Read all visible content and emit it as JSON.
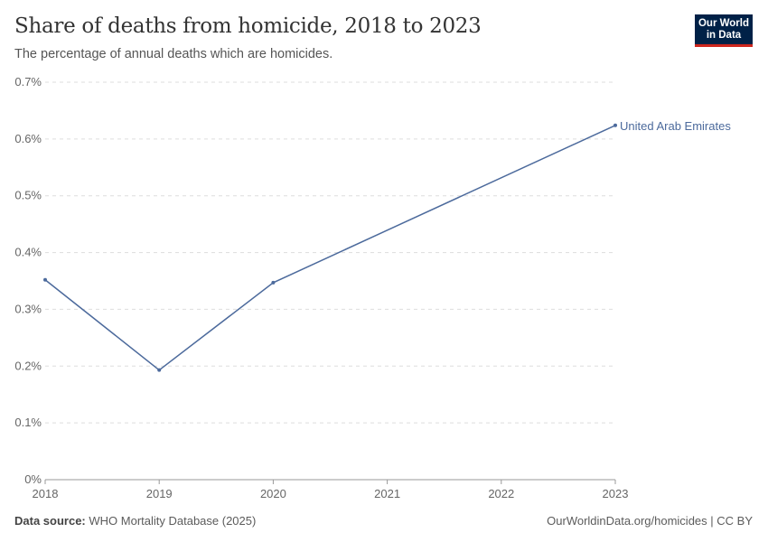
{
  "header": {
    "title": "Share of deaths from homicide, 2018 to 2023",
    "subtitle": "The percentage of annual deaths which are homicides.",
    "logo": "Our World in Data"
  },
  "footer": {
    "source_label": "Data source:",
    "source": "WHO Mortality Database (2025)",
    "link": "OurWorldinData.org/homicides | CC BY"
  },
  "chart_data": {
    "type": "line",
    "title": "Share of deaths from homicide, 2018 to 2023",
    "xlabel": "",
    "ylabel": "",
    "xlim": [
      2018,
      2023
    ],
    "ylim": [
      0,
      0.7
    ],
    "x_ticks": [
      "2018",
      "2019",
      "2020",
      "2021",
      "2022",
      "2023"
    ],
    "y_ticks": [
      "0%",
      "0.1%",
      "0.2%",
      "0.3%",
      "0.4%",
      "0.5%",
      "0.6%",
      "0.7%"
    ],
    "grid": "horizontal dashed",
    "legend": "end-of-line label",
    "series": [
      {
        "name": "United Arab Emirates",
        "color": "#4c6a9c",
        "x": [
          2018,
          2019,
          2020,
          2023
        ],
        "y": [
          0.352,
          0.193,
          0.347,
          0.624
        ]
      }
    ]
  }
}
